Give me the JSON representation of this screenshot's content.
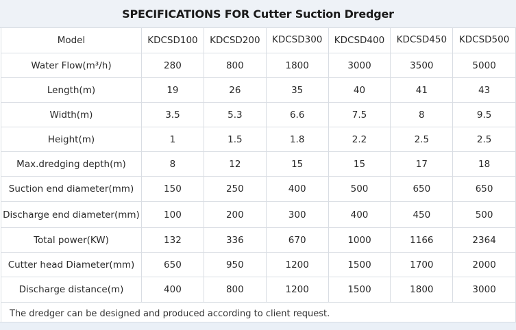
{
  "title": "SPECIFICATIONS FOR Cutter Suction Dredger",
  "header": {
    "label": "Model",
    "models": [
      "KDCSD100",
      "KDCSD200",
      "KDCSD300",
      "KDCSD400",
      "KDCSD450",
      "KDCSD500"
    ]
  },
  "rows": [
    {
      "label": "Water Flow(m³/h)",
      "values": [
        "280",
        "800",
        "1800",
        "3000",
        "3500",
        "5000"
      ]
    },
    {
      "label": "Length(m)",
      "values": [
        "19",
        "26",
        "35",
        "40",
        "41",
        "43"
      ]
    },
    {
      "label": "Width(m)",
      "values": [
        "3.5",
        "5.3",
        "6.6",
        "7.5",
        "8",
        "9.5"
      ]
    },
    {
      "label": "Height(m)",
      "values": [
        "1",
        "1.5",
        "1.8",
        "2.2",
        "2.5",
        "2.5"
      ]
    },
    {
      "label": "Max.dredging depth(m)",
      "values": [
        "8",
        "12",
        "15",
        "15",
        "17",
        "18"
      ]
    },
    {
      "label": "Suction end diameter(mm)",
      "values": [
        "150",
        "250",
        "400",
        "500",
        "650",
        "650"
      ]
    },
    {
      "label": "Discharge end diameter(mm)",
      "values": [
        "100",
        "200",
        "300",
        "400",
        "450",
        "500"
      ]
    },
    {
      "label": "Total power(KW)",
      "values": [
        "132",
        "336",
        "670",
        "1000",
        "1166",
        "2364"
      ]
    },
    {
      "label": "Cutter head Diameter(mm)",
      "values": [
        "650",
        "950",
        "1200",
        "1500",
        "1700",
        "2000"
      ]
    },
    {
      "label": "Discharge distance(m)",
      "values": [
        "400",
        "800",
        "1200",
        "1500",
        "1800",
        "3000"
      ]
    }
  ],
  "note": "The dredger can be designed and produced according to client request."
}
